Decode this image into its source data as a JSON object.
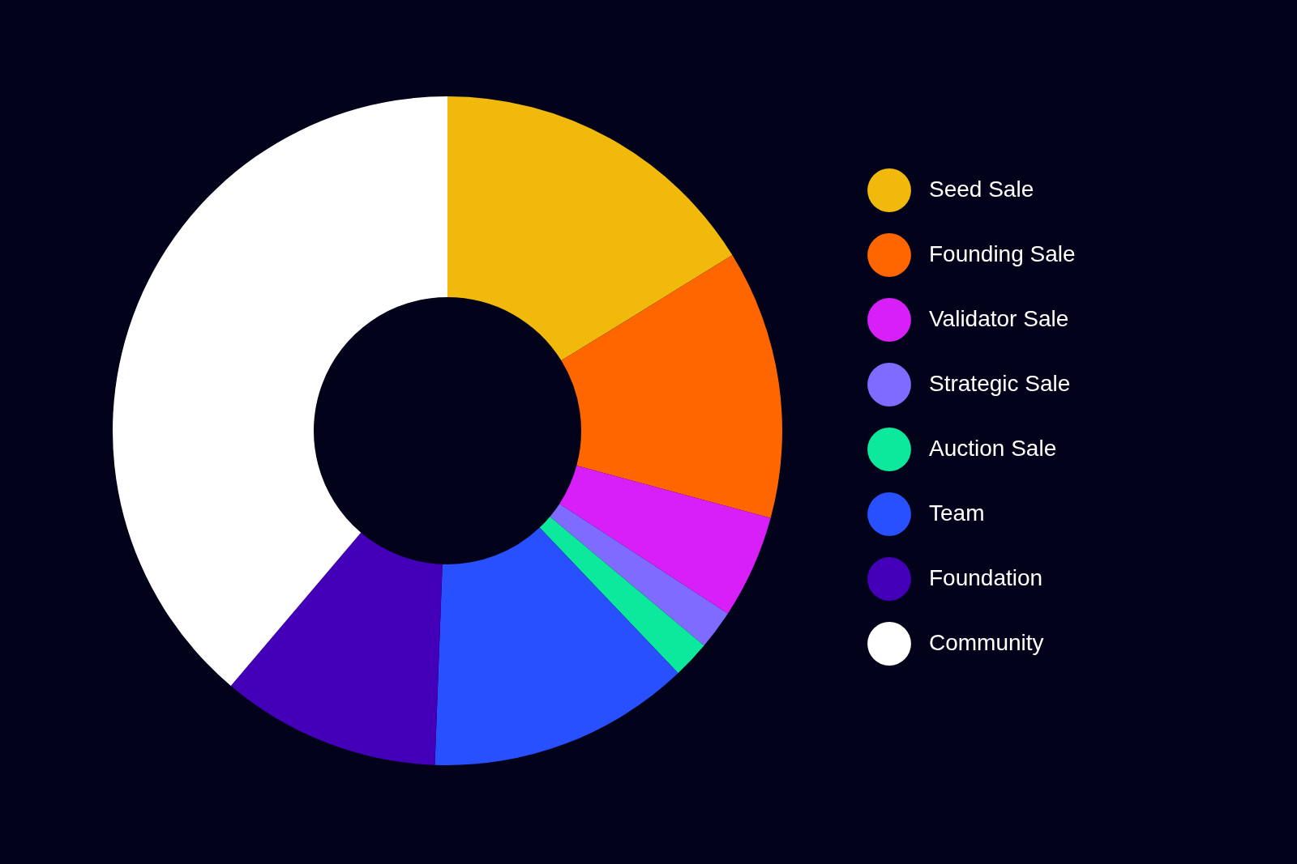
{
  "chart_data": {
    "type": "donut",
    "categories": [
      "Seed Sale",
      "Founding Sale",
      "Validator Sale",
      "Strategic Sale",
      "Auction Sale",
      "Team",
      "Foundation",
      "Community"
    ],
    "values": [
      16.2,
      13,
      5,
      1.9,
      1.8,
      12.7,
      10.6,
      38.8
    ],
    "colors": [
      "#f0b90b",
      "#ff6600",
      "#d81ff7",
      "#7f6bff",
      "#0ce89c",
      "#2850ff",
      "#4300b8",
      "#ffffff"
    ],
    "legend": "right"
  }
}
